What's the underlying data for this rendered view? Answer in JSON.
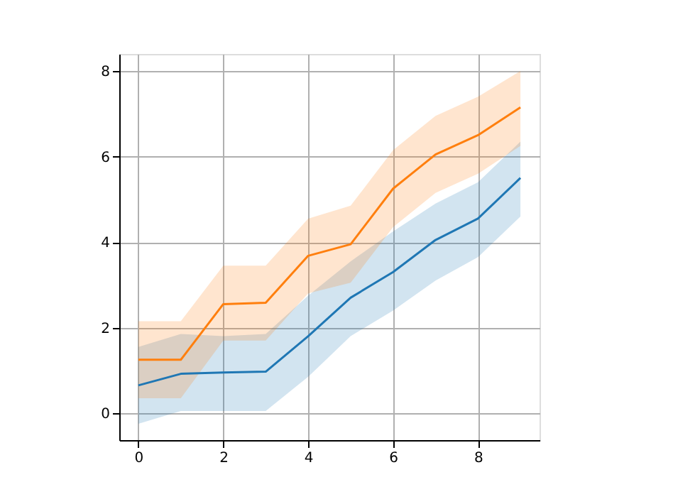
{
  "chart_data": {
    "type": "line",
    "x": [
      0,
      1,
      2,
      3,
      4,
      5,
      6,
      7,
      8,
      9
    ],
    "xlim": [
      -0.45,
      9.45
    ],
    "ylim": [
      -0.63,
      8.4
    ],
    "xticks": [
      0,
      2,
      4,
      6,
      8
    ],
    "yticks": [
      0,
      2,
      4,
      6,
      8
    ],
    "grid": true,
    "series": [
      {
        "color": "#1f77b4",
        "values": [
          0.65,
          0.92,
          0.95,
          0.97,
          1.8,
          2.7,
          3.3,
          4.05,
          4.55,
          5.5
        ],
        "lower": [
          -0.25,
          0.05,
          0.05,
          0.05,
          0.85,
          1.8,
          2.4,
          3.1,
          3.65,
          4.6
        ],
        "upper": [
          1.55,
          1.85,
          1.8,
          1.85,
          2.75,
          3.55,
          4.25,
          4.9,
          5.4,
          6.35
        ]
      },
      {
        "color": "#ff7f0e",
        "values": [
          1.25,
          1.25,
          2.55,
          2.58,
          3.68,
          3.95,
          5.25,
          6.05,
          6.5,
          7.15
        ],
        "lower": [
          0.35,
          0.35,
          1.7,
          1.7,
          2.8,
          3.05,
          4.35,
          5.15,
          5.6,
          6.25
        ],
        "upper": [
          2.15,
          2.15,
          3.45,
          3.45,
          4.55,
          4.85,
          6.15,
          6.95,
          7.4,
          8.0
        ]
      }
    ]
  }
}
